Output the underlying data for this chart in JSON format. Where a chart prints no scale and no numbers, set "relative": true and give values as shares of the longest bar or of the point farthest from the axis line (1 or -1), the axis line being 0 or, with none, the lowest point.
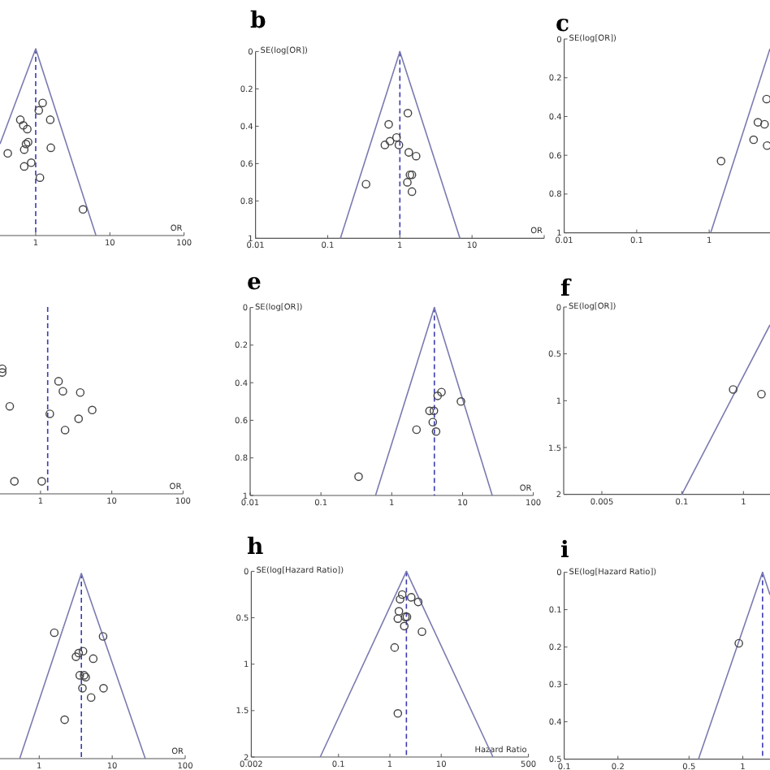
{
  "chart_data": [
    {
      "type": "scatter",
      "relative": true,
      "log": "x",
      "xlabel": "OR",
      "xlim": [
        0.33,
        100
      ],
      "xticks": [
        1,
        10,
        100
      ],
      "ref_lines": [
        {
          "axis": "x",
          "value": 1,
          "color": "#3b3bb3",
          "line_style": "dashed"
        }
      ],
      "series": [
        {
          "type": "line",
          "marker": "none",
          "color": "#7a7ab0",
          "x": [
            0.33,
            1,
            6.5
          ],
          "values": [
            0.49,
            1,
            0
          ]
        },
        {
          "marker": "circle",
          "color": "#444444",
          "x": [
            1.24,
            1.1,
            0.62,
            1.57,
            0.68,
            0.77,
            0.79,
            0.74,
            1.6,
            0.7,
            0.42,
            0.87,
            0.7,
            1.14,
            4.34
          ],
          "values": [
            0.71,
            0.67,
            0.62,
            0.62,
            0.59,
            0.57,
            0.5,
            0.49,
            0.47,
            0.46,
            0.44,
            0.39,
            0.37,
            0.31,
            0.14
          ]
        }
      ]
    },
    {
      "type": "scatter",
      "title": "b",
      "log": "x",
      "xlabel": "OR",
      "ylabel": "SE(log[OR])",
      "xlim": [
        0.01,
        100
      ],
      "xticks": [
        0.01,
        0.1,
        1,
        10,
        {
          "value": 100,
          "label": null
        }
      ],
      "ylim": [
        1,
        0
      ],
      "yticks": [
        0,
        0.2,
        0.4,
        0.6,
        0.8,
        1
      ],
      "ref_lines": [
        {
          "axis": "x",
          "value": 1,
          "color": "#3b3bb3",
          "line_style": "dashed"
        }
      ],
      "series": [
        {
          "type": "line",
          "marker": "none",
          "color": "#7a7ab0",
          "x": [
            0.15,
            1,
            6.8
          ],
          "values": [
            1,
            0,
            1
          ]
        },
        {
          "marker": "circle",
          "color": "#444444",
          "x": [
            1.29,
            0.7,
            0.9,
            0.73,
            0.62,
            0.97,
            1.33,
            1.68,
            1.47,
            1.38,
            1.27,
            0.34,
            1.47
          ],
          "values": [
            0.33,
            0.39,
            0.46,
            0.48,
            0.5,
            0.5,
            0.54,
            0.56,
            0.66,
            0.66,
            0.7,
            0.71,
            0.75
          ]
        }
      ]
    },
    {
      "type": "scatter",
      "title": "c",
      "log": "x",
      "ylabel": "SE(log[OR])",
      "xlim": [
        0.01,
        6.9
      ],
      "xticks": [
        0.01,
        0.1,
        1
      ],
      "ylim": [
        1,
        0
      ],
      "yticks": [
        0,
        0.2,
        0.4,
        0.6,
        0.8,
        1
      ],
      "series": [
        {
          "type": "line",
          "marker": "none",
          "color": "#7a7ab0",
          "x": [
            1.05,
            6.9
          ],
          "values": [
            1,
            0.05
          ]
        },
        {
          "marker": "circle",
          "color": "#444444",
          "x": [
            6.2,
            4.7,
            5.8,
            4.1,
            6.3,
            1.46
          ],
          "values": [
            0.31,
            0.43,
            0.44,
            0.52,
            0.55,
            0.63
          ]
        }
      ]
    },
    {
      "type": "scatter",
      "relative": true,
      "log": "x",
      "xlabel": "OR",
      "xlim": [
        0.27,
        100
      ],
      "xticks": [
        1,
        10,
        100
      ],
      "ref_lines": [
        {
          "axis": "x",
          "value": 1.26,
          "color": "#3b3bb3",
          "line_style": "dashed"
        }
      ],
      "series": [
        {
          "marker": "circle",
          "color": "#444444",
          "x": [
            0.29,
            0.29,
            0.37,
            1.79,
            2.06,
            3.61,
            1.35,
            5.31,
            3.42,
            2.21,
            0.43,
            1.04
          ],
          "values": [
            1,
            0.97,
            0.7,
            0.9,
            0.82,
            0.81,
            0.64,
            0.67,
            0.6,
            0.51,
            0.1,
            0.1
          ]
        }
      ]
    },
    {
      "type": "scatter",
      "title": "e",
      "log": "x",
      "xlabel": "OR",
      "ylabel": "SE(log[OR])",
      "xlim": [
        0.01,
        100
      ],
      "xticks": [
        0.01,
        0.1,
        1,
        10,
        100
      ],
      "ylim": [
        1,
        0
      ],
      "yticks": [
        0,
        0.2,
        0.4,
        0.6,
        0.8,
        1
      ],
      "ref_lines": [
        {
          "axis": "x",
          "value": 4,
          "color": "#3b3bb3",
          "line_style": "dashed"
        }
      ],
      "series": [
        {
          "type": "line",
          "marker": "none",
          "color": "#7a7ab0",
          "x": [
            0.59,
            4,
            26.3
          ],
          "values": [
            1,
            0,
            1
          ]
        },
        {
          "marker": "circle",
          "color": "#444444",
          "x": [
            5.04,
            4.45,
            9.5,
            3.42,
            3.94,
            3.8,
            2.24,
            4.23,
            0.34
          ],
          "values": [
            0.45,
            0.47,
            0.5,
            0.55,
            0.55,
            0.61,
            0.65,
            0.66,
            0.9
          ]
        }
      ]
    },
    {
      "type": "scatter",
      "title": "f",
      "log": "x",
      "ylabel": "SE(log[OR])",
      "xlim": [
        0.0012,
        2.7
      ],
      "xticks": [
        0.005,
        0.1,
        1
      ],
      "ylim": [
        2,
        0
      ],
      "yticks": [
        0,
        0.5,
        1,
        1.5,
        2
      ],
      "series": [
        {
          "type": "line",
          "marker": "none",
          "color": "#7a7ab0",
          "x": [
            0.1,
            2.7
          ],
          "values": [
            2,
            0.19
          ]
        },
        {
          "marker": "circle",
          "color": "#444444",
          "x": [
            0.68,
            1.96
          ],
          "values": [
            0.88,
            0.93
          ]
        }
      ]
    },
    {
      "type": "scatter",
      "relative": true,
      "log": "x",
      "xlabel": "OR",
      "xlim": [
        0.29,
        100
      ],
      "xticks": [
        1,
        10,
        100
      ],
      "ref_lines": [
        {
          "axis": "x",
          "value": 3.78,
          "color": "#3b3bb3",
          "line_style": "dashed"
        }
      ],
      "series": [
        {
          "type": "line",
          "marker": "none",
          "color": "#7a7ab0",
          "x": [
            0.54,
            3.78,
            28.4
          ],
          "values": [
            0,
            1,
            0
          ]
        },
        {
          "marker": "circle",
          "color": "#444444",
          "x": [
            1.61,
            7.5,
            3.98,
            3.47,
            3.19,
            5.5,
            3.59,
            4.12,
            4.33,
            3.91,
            7.6,
            5.14,
            2.23
          ],
          "values": [
            0.68,
            0.66,
            0.58,
            0.57,
            0.55,
            0.54,
            0.45,
            0.45,
            0.44,
            0.38,
            0.38,
            0.33,
            0.21
          ]
        }
      ]
    },
    {
      "type": "scatter",
      "title": "h",
      "log": "x",
      "xlabel": "Hazard Ratio",
      "ylabel": "SE(log[Hazard Ratio])",
      "xlim": [
        0.002,
        500
      ],
      "xticks": [
        0.002,
        0.1,
        1,
        10,
        500
      ],
      "ylim": [
        2,
        0
      ],
      "yticks": [
        0,
        0.5,
        1,
        1.5,
        2
      ],
      "ref_lines": [
        {
          "axis": "x",
          "value": 2.1,
          "color": "#3b3bb3",
          "line_style": "dashed"
        }
      ],
      "series": [
        {
          "type": "line",
          "marker": "none",
          "color": "#7a7ab0",
          "x": [
            0.044,
            2.1,
            102
          ],
          "values": [
            2,
            0,
            2
          ]
        },
        {
          "marker": "circle",
          "color": "#444444",
          "x": [
            1.74,
            2.61,
            1.58,
            3.56,
            1.5,
            2.0,
            2.15,
            1.43,
            1.91,
            4.22,
            1.24,
            1.43
          ],
          "values": [
            0.25,
            0.28,
            0.3,
            0.33,
            0.43,
            0.49,
            0.49,
            0.51,
            0.59,
            0.65,
            0.82,
            1.53
          ]
        }
      ]
    },
    {
      "type": "scatter",
      "title": "i",
      "log": "x",
      "ylabel": "SE(log[Hazard Ratio])",
      "xlim": [
        0.1,
        1.42
      ],
      "xticks": [
        0.1,
        0.2,
        0.5,
        1
      ],
      "ylim": [
        0.5,
        0
      ],
      "yticks": [
        0,
        0.1,
        0.2,
        0.3,
        0.4,
        0.5
      ],
      "ref_lines": [
        {
          "axis": "x",
          "value": 1.29,
          "color": "#3b3bb3",
          "line_style": "dashed"
        }
      ],
      "series": [
        {
          "type": "line",
          "marker": "none",
          "color": "#7a7ab0",
          "x": [
            0.565,
            1.29,
            1.42
          ],
          "values": [
            0.5,
            0,
            0.06
          ]
        },
        {
          "marker": "circle",
          "color": "#444444",
          "x": [
            0.95
          ],
          "values": [
            0.19
          ]
        }
      ]
    }
  ]
}
